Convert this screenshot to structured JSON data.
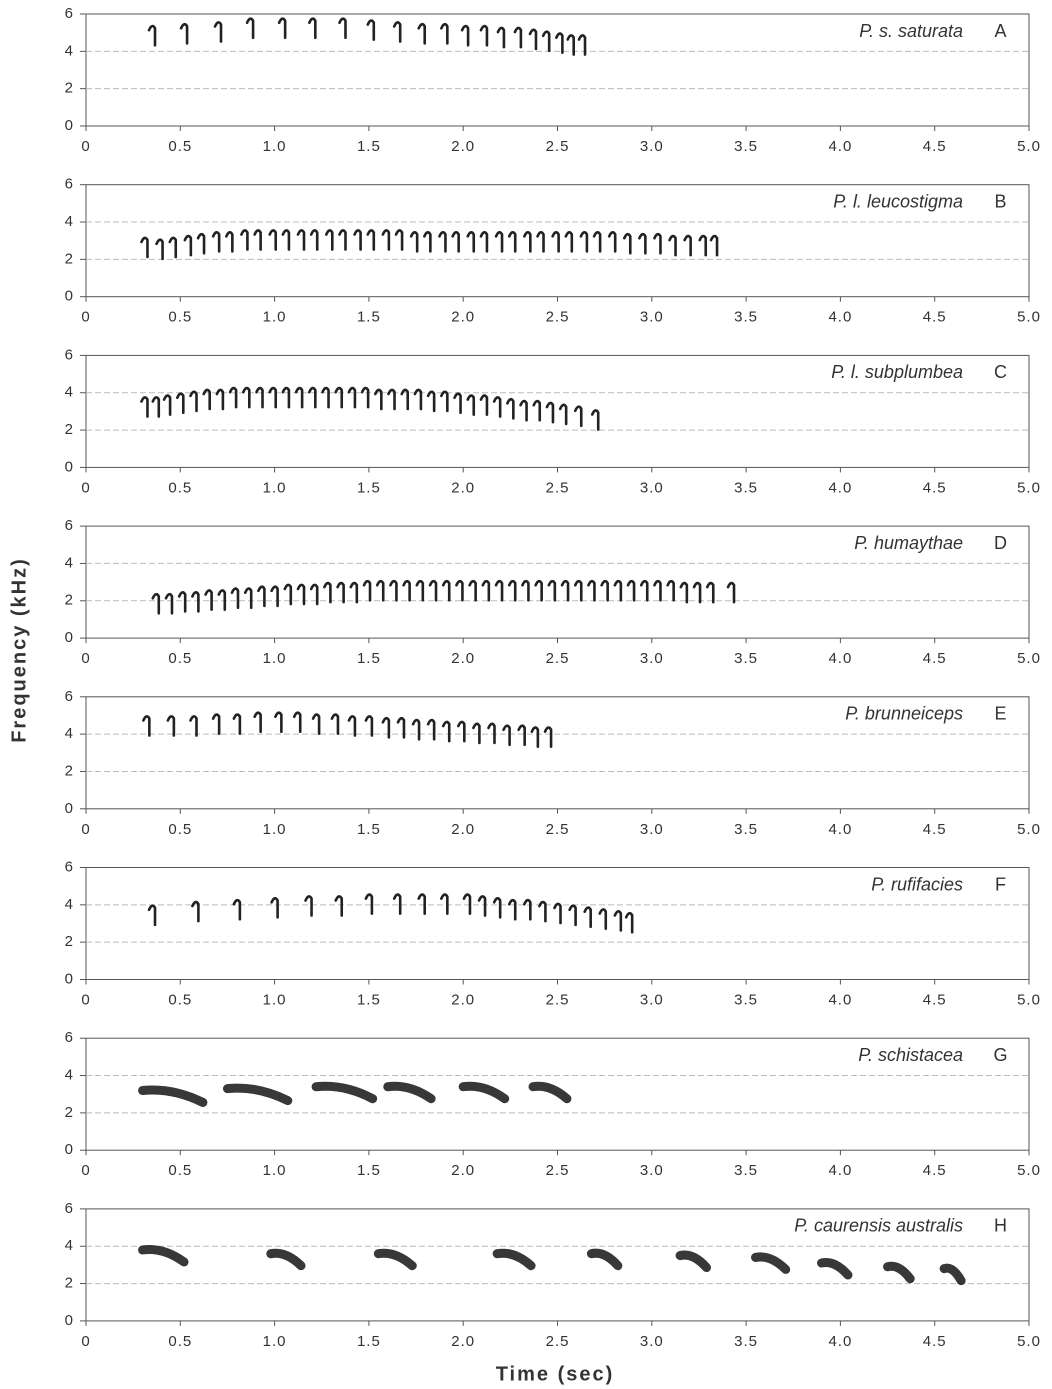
{
  "y_label": "Frequency (kHz)",
  "x_label": "Time (sec)",
  "chart_data": [
    {
      "type": "spectrogram",
      "title": "P. s. saturata",
      "label": "A",
      "xlim": [
        0,
        5
      ],
      "ylim": [
        0,
        6
      ],
      "xticks": [
        0,
        0.5,
        {
          "value": 1,
          "label": "1.0"
        },
        1.5,
        {
          "value": 2,
          "label": "2.0"
        },
        2.5,
        {
          "value": 3,
          "label": "3.0"
        },
        3.5,
        {
          "value": 4,
          "label": "4.0"
        },
        4.5,
        {
          "value": 5,
          "label": "5.0"
        }
      ],
      "yticks": [
        0,
        2,
        4,
        6
      ],
      "color": "#222222",
      "x": [
        0.35,
        0.52,
        0.7,
        0.87,
        1.04,
        1.2,
        1.36,
        1.51,
        1.65,
        1.78,
        1.9,
        2.01,
        2.11,
        2.2,
        2.29,
        2.37,
        2.44,
        2.51,
        2.57,
        2.63
      ],
      "values": [
        5.4,
        5.5,
        5.6,
        5.8,
        5.8,
        5.8,
        5.8,
        5.7,
        5.6,
        5.5,
        5.5,
        5.4,
        5.4,
        5.3,
        5.3,
        5.2,
        5.1,
        5.0,
        4.9,
        4.9
      ]
    },
    {
      "type": "spectrogram",
      "title": "P. l. leucostigma",
      "label": "B",
      "xlim": [
        0,
        5
      ],
      "ylim": [
        0,
        6
      ],
      "xticks": [
        0,
        0.5,
        {
          "value": 1,
          "label": "1.0"
        },
        1.5,
        {
          "value": 2,
          "label": "2.0"
        },
        2.5,
        {
          "value": 3,
          "label": "3.0"
        },
        3.5,
        {
          "value": 4,
          "label": "4.0"
        },
        4.5,
        {
          "value": 5,
          "label": "5.0"
        }
      ],
      "yticks": [
        0,
        2,
        4,
        6
      ],
      "color": "#222222",
      "x": [
        0.31,
        0.39,
        0.46,
        0.54,
        0.61,
        0.69,
        0.76,
        0.84,
        0.91,
        0.99,
        1.06,
        1.14,
        1.21,
        1.29,
        1.36,
        1.44,
        1.51,
        1.59,
        1.66,
        1.74,
        1.81,
        1.89,
        1.96,
        2.04,
        2.11,
        2.19,
        2.26,
        2.34,
        2.41,
        2.49,
        2.56,
        2.64,
        2.71,
        2.79,
        2.87,
        2.95,
        3.03,
        3.11,
        3.19,
        3.27,
        3.33
      ],
      "values": [
        3.2,
        3.1,
        3.2,
        3.3,
        3.4,
        3.5,
        3.5,
        3.6,
        3.6,
        3.6,
        3.6,
        3.6,
        3.6,
        3.6,
        3.6,
        3.6,
        3.6,
        3.6,
        3.6,
        3.5,
        3.5,
        3.5,
        3.5,
        3.5,
        3.5,
        3.5,
        3.5,
        3.5,
        3.5,
        3.5,
        3.5,
        3.5,
        3.5,
        3.5,
        3.4,
        3.4,
        3.4,
        3.3,
        3.3,
        3.3,
        3.3
      ]
    },
    {
      "type": "spectrogram",
      "title": "P. l. subplumbea",
      "label": "C",
      "xlim": [
        0,
        5
      ],
      "ylim": [
        0,
        6
      ],
      "xticks": [
        0,
        0.5,
        {
          "value": 1,
          "label": "1.0"
        },
        1.5,
        {
          "value": 2,
          "label": "2.0"
        },
        2.5,
        {
          "value": 3,
          "label": "3.0"
        },
        3.5,
        {
          "value": 4,
          "label": "4.0"
        },
        4.5,
        {
          "value": 5,
          "label": "5.0"
        }
      ],
      "yticks": [
        0,
        2,
        4,
        6
      ],
      "color": "#222222",
      "x": [
        0.31,
        0.37,
        0.43,
        0.5,
        0.57,
        0.64,
        0.71,
        0.78,
        0.85,
        0.92,
        0.99,
        1.06,
        1.13,
        1.2,
        1.27,
        1.34,
        1.41,
        1.48,
        1.55,
        1.62,
        1.69,
        1.76,
        1.83,
        1.9,
        1.97,
        2.04,
        2.11,
        2.18,
        2.25,
        2.32,
        2.39,
        2.46,
        2.53,
        2.61,
        2.7
      ],
      "values": [
        3.8,
        3.8,
        3.9,
        4.0,
        4.1,
        4.2,
        4.2,
        4.3,
        4.3,
        4.3,
        4.3,
        4.3,
        4.3,
        4.3,
        4.3,
        4.3,
        4.3,
        4.3,
        4.2,
        4.2,
        4.2,
        4.2,
        4.1,
        4.1,
        4.0,
        3.9,
        3.9,
        3.8,
        3.7,
        3.6,
        3.6,
        3.5,
        3.4,
        3.3,
        3.1
      ]
    },
    {
      "type": "spectrogram",
      "title": "P. humaythae",
      "label": "D",
      "xlim": [
        0,
        5
      ],
      "ylim": [
        0,
        6
      ],
      "xticks": [
        0,
        0.5,
        {
          "value": 1,
          "label": "1.0"
        },
        1.5,
        {
          "value": 2,
          "label": "2.0"
        },
        2.5,
        {
          "value": 3,
          "label": "3.0"
        },
        3.5,
        {
          "value": 4,
          "label": "4.0"
        },
        4.5,
        {
          "value": 5,
          "label": "5.0"
        }
      ],
      "yticks": [
        0,
        2,
        4,
        6
      ],
      "color": "#222222",
      "x": [
        0.37,
        0.44,
        0.51,
        0.58,
        0.65,
        0.72,
        0.79,
        0.86,
        0.93,
        1.0,
        1.07,
        1.14,
        1.21,
        1.28,
        1.35,
        1.42,
        1.49,
        1.56,
        1.63,
        1.7,
        1.77,
        1.84,
        1.91,
        1.98,
        2.05,
        2.12,
        2.19,
        2.26,
        2.33,
        2.4,
        2.47,
        2.54,
        2.61,
        2.68,
        2.75,
        2.82,
        2.89,
        2.96,
        3.03,
        3.1,
        3.17,
        3.24,
        3.31,
        3.42
      ],
      "values": [
        2.4,
        2.4,
        2.5,
        2.5,
        2.6,
        2.6,
        2.7,
        2.7,
        2.8,
        2.8,
        2.9,
        2.9,
        2.9,
        3.0,
        3.0,
        3.0,
        3.1,
        3.1,
        3.1,
        3.1,
        3.1,
        3.1,
        3.1,
        3.1,
        3.1,
        3.1,
        3.1,
        3.1,
        3.1,
        3.1,
        3.1,
        3.1,
        3.1,
        3.1,
        3.1,
        3.1,
        3.1,
        3.1,
        3.1,
        3.1,
        3.0,
        3.0,
        3.0,
        3.0
      ]
    },
    {
      "type": "spectrogram",
      "title": "P. brunneiceps",
      "label": "E",
      "xlim": [
        0,
        5
      ],
      "ylim": [
        0,
        6
      ],
      "xticks": [
        0,
        0.5,
        {
          "value": 1,
          "label": "1.0"
        },
        1.5,
        {
          "value": 2,
          "label": "2.0"
        },
        2.5,
        {
          "value": 3,
          "label": "3.0"
        },
        3.5,
        {
          "value": 4,
          "label": "4.0"
        },
        4.5,
        {
          "value": 5,
          "label": "5.0"
        }
      ],
      "yticks": [
        0,
        2,
        4,
        6
      ],
      "color": "#222222",
      "x": [
        0.32,
        0.45,
        0.57,
        0.69,
        0.8,
        0.91,
        1.02,
        1.12,
        1.22,
        1.32,
        1.41,
        1.5,
        1.59,
        1.67,
        1.75,
        1.83,
        1.91,
        1.99,
        2.07,
        2.15,
        2.23,
        2.31,
        2.38,
        2.45
      ],
      "values": [
        5.0,
        5.0,
        5.0,
        5.1,
        5.1,
        5.2,
        5.2,
        5.2,
        5.1,
        5.1,
        5.0,
        5.0,
        4.9,
        4.9,
        4.8,
        4.8,
        4.7,
        4.7,
        4.6,
        4.6,
        4.5,
        4.5,
        4.4,
        4.4
      ]
    },
    {
      "type": "spectrogram",
      "title": "P. rufifacies",
      "label": "F",
      "xlim": [
        0,
        5
      ],
      "ylim": [
        0,
        6
      ],
      "xticks": [
        0,
        0.5,
        {
          "value": 1,
          "label": "1.0"
        },
        1.5,
        {
          "value": 2,
          "label": "2.0"
        },
        2.5,
        {
          "value": 3,
          "label": "3.0"
        },
        3.5,
        {
          "value": 4,
          "label": "4.0"
        },
        4.5,
        {
          "value": 5,
          "label": "5.0"
        }
      ],
      "yticks": [
        0,
        2,
        4,
        6
      ],
      "color": "#222222",
      "x": [
        0.35,
        0.58,
        0.8,
        1.0,
        1.18,
        1.34,
        1.5,
        1.65,
        1.78,
        1.9,
        2.02,
        2.1,
        2.18,
        2.26,
        2.34,
        2.42,
        2.5,
        2.58,
        2.66,
        2.74,
        2.82,
        2.88
      ],
      "values": [
        4.0,
        4.2,
        4.3,
        4.4,
        4.5,
        4.5,
        4.6,
        4.6,
        4.6,
        4.6,
        4.6,
        4.5,
        4.4,
        4.3,
        4.3,
        4.2,
        4.1,
        4.0,
        3.9,
        3.8,
        3.7,
        3.6
      ]
    },
    {
      "type": "spectrogram",
      "title": "P. schistacea",
      "label": "G",
      "xlim": [
        0,
        5
      ],
      "ylim": [
        0,
        6
      ],
      "xticks": [
        0,
        0.5,
        {
          "value": 1,
          "label": "1.0"
        },
        1.5,
        {
          "value": 2,
          "label": "2.0"
        },
        2.5,
        {
          "value": 3,
          "label": "3.0"
        },
        3.5,
        {
          "value": 4,
          "label": "4.0"
        },
        4.5,
        {
          "value": 5,
          "label": "5.0"
        }
      ],
      "yticks": [
        0,
        2,
        4,
        6
      ],
      "color": "#222222",
      "x": [
        0.3,
        0.75,
        1.22,
        1.6,
        2.0,
        2.37
      ],
      "durations": [
        0.32,
        0.32,
        0.3,
        0.23,
        0.22,
        0.18
      ],
      "values": [
        3.2,
        3.3,
        3.4,
        3.4,
        3.4,
        3.4
      ]
    },
    {
      "type": "spectrogram",
      "title": "P. caurensis australis",
      "label": "H",
      "xlim": [
        0,
        5
      ],
      "ylim": [
        0,
        6
      ],
      "xticks": [
        0,
        0.5,
        {
          "value": 1,
          "label": "1.0"
        },
        1.5,
        {
          "value": 2,
          "label": "2.0"
        },
        2.5,
        {
          "value": 3,
          "label": "3.0"
        },
        3.5,
        {
          "value": 4,
          "label": "4.0"
        },
        4.5,
        {
          "value": 5,
          "label": "5.0"
        }
      ],
      "yticks": [
        0,
        2,
        4,
        6
      ],
      "color": "#222222",
      "x": [
        0.3,
        0.98,
        1.55,
        2.18,
        2.68,
        3.15,
        3.55,
        3.9,
        4.25,
        4.55
      ],
      "durations": [
        0.22,
        0.16,
        0.18,
        0.18,
        0.14,
        0.14,
        0.16,
        0.14,
        0.12,
        0.09
      ],
      "values": [
        3.8,
        3.6,
        3.6,
        3.6,
        3.6,
        3.5,
        3.4,
        3.1,
        2.9,
        2.8
      ]
    }
  ]
}
